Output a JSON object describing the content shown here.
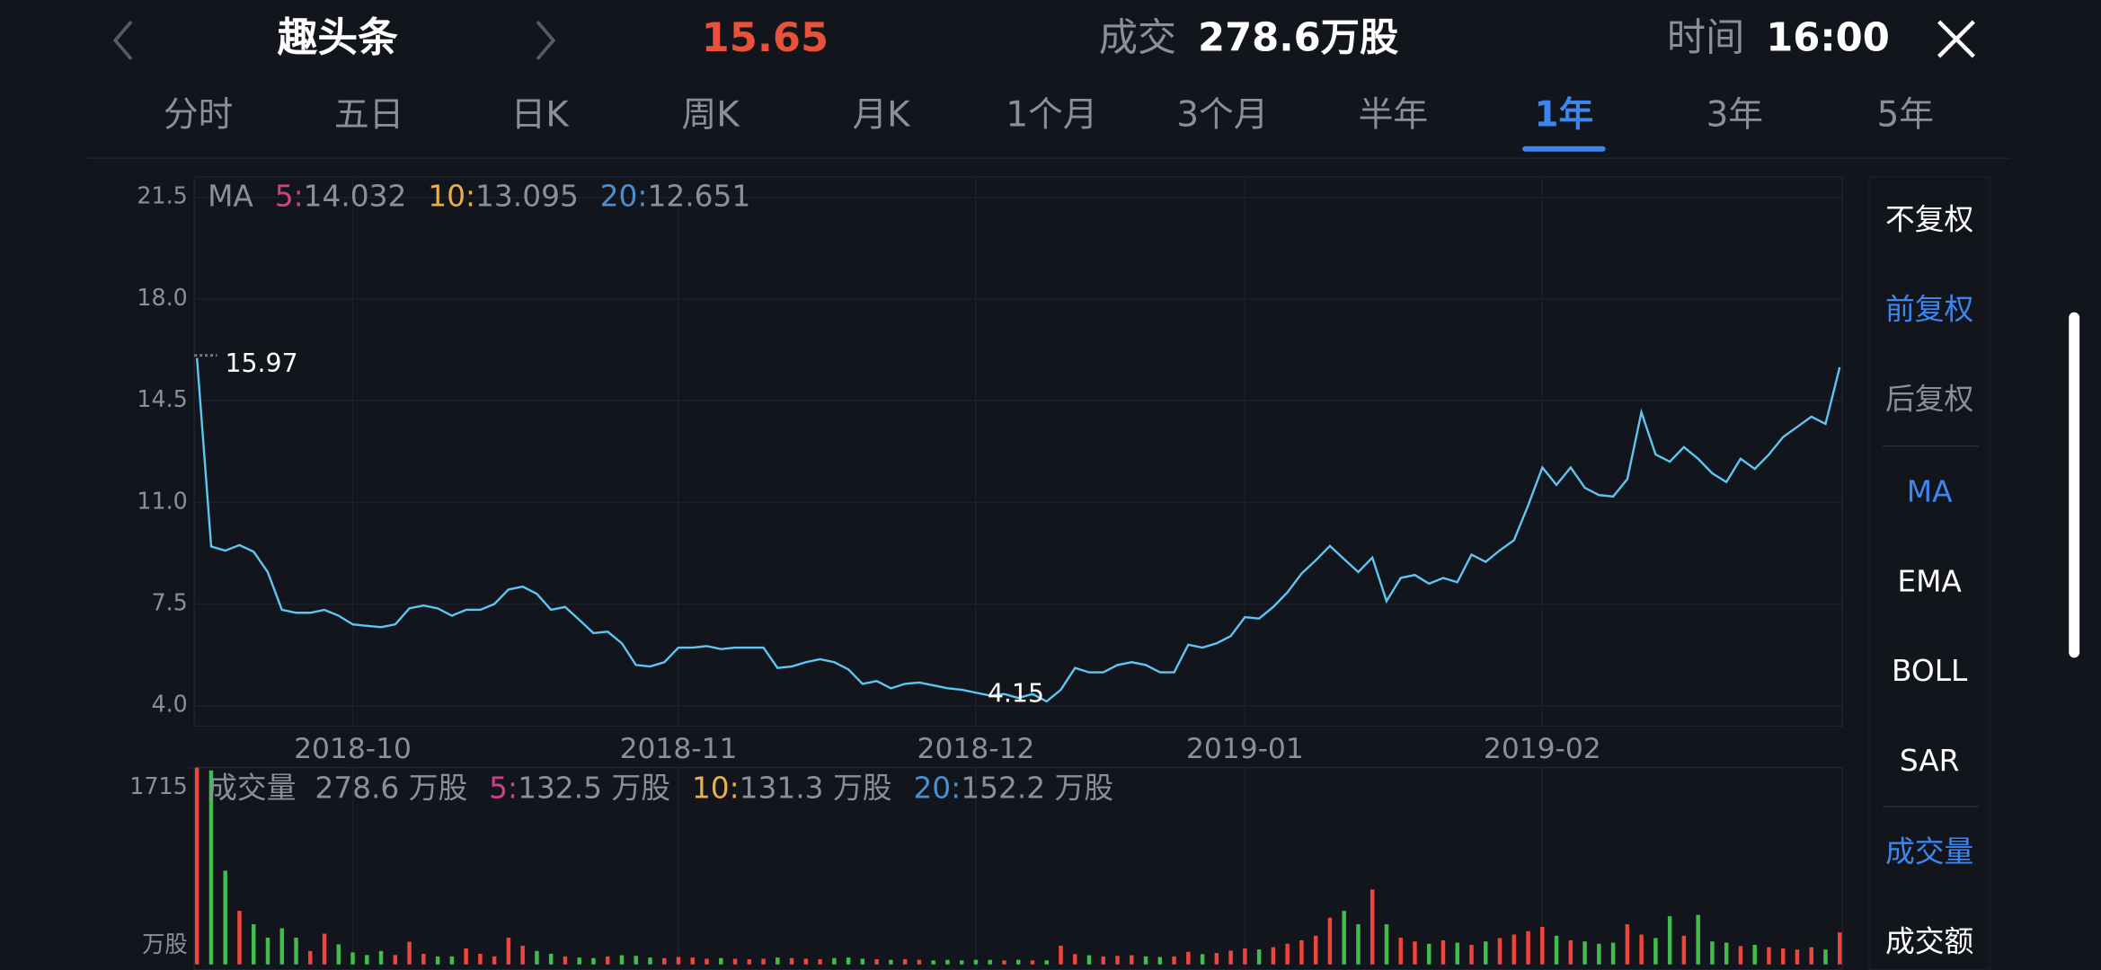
{
  "header": {
    "stock": "趣头条",
    "price": "15.65",
    "volume_label": "成交",
    "volume": "278.6万股",
    "time_label": "时间",
    "time": "16:00"
  },
  "tabs": {
    "items": [
      "分时",
      "五日",
      "日K",
      "周K",
      "月K",
      "1个月",
      "3个月",
      "半年",
      "1年",
      "3年",
      "5年"
    ],
    "active": 8
  },
  "side_menu": {
    "items": [
      {
        "text": "不复权",
        "color": "#ffffff"
      },
      {
        "text": "前复权",
        "color": "#3d86f0"
      },
      {
        "text": "后复权",
        "color": "#8a8f99"
      },
      {
        "text": "MA",
        "color": "#3d86f0"
      },
      {
        "text": "EMA",
        "color": "#ffffff"
      },
      {
        "text": "BOLL",
        "color": "#ffffff"
      },
      {
        "text": "SAR",
        "color": "#ffffff"
      },
      {
        "text": "成交量",
        "color": "#3d86f0"
      },
      {
        "text": "成交额",
        "color": "#ffffff"
      }
    ]
  },
  "chart_data": [
    {
      "type": "line",
      "legend": {
        "label": "MA",
        "items": [
          {
            "name": "5:",
            "value": 14.032,
            "color": "#d0408a"
          },
          {
            "name": "10:",
            "value": 13.095,
            "color": "#e8b04a"
          },
          {
            "name": "20:",
            "value": 12.651,
            "color": "#4a8fd0"
          }
        ]
      },
      "high_label": 15.97,
      "low_label": 4.15,
      "categories": [
        null,
        null,
        null,
        null,
        null,
        null,
        null,
        null,
        null,
        null,
        null,
        "2018-10",
        null,
        null,
        null,
        null,
        null,
        null,
        null,
        null,
        null,
        null,
        null,
        null,
        null,
        null,
        null,
        null,
        null,
        null,
        null,
        null,
        null,
        null,
        "2018-11",
        null,
        null,
        null,
        null,
        null,
        null,
        null,
        null,
        null,
        null,
        null,
        null,
        null,
        null,
        null,
        null,
        null,
        null,
        null,
        null,
        "2018-12",
        null,
        null,
        null,
        null,
        null,
        null,
        null,
        null,
        null,
        null,
        null,
        null,
        null,
        null,
        null,
        null,
        null,
        null,
        "2019-01",
        null,
        null,
        null,
        null,
        null,
        null,
        null,
        null,
        null,
        null,
        null,
        null,
        null,
        null,
        null,
        null,
        null,
        null,
        null,
        null,
        "2019-02",
        null,
        null,
        null,
        null,
        null,
        null,
        null,
        null,
        null,
        null,
        null,
        null,
        null,
        null,
        null,
        null,
        null,
        null,
        null,
        null,
        null
      ],
      "series": [
        {
          "color": "#5ec6f2",
          "values": [
            15.97,
            9.48,
            9.34,
            9.53,
            9.3,
            8.6,
            7.3,
            7.2,
            7.2,
            7.3,
            7.1,
            6.8,
            6.75,
            6.7,
            6.8,
            7.35,
            7.45,
            7.35,
            7.1,
            7.3,
            7.3,
            7.5,
            8.0,
            8.1,
            7.85,
            7.3,
            7.4,
            6.95,
            6.5,
            6.55,
            6.15,
            5.4,
            5.35,
            5.5,
            6.0,
            6.0,
            6.05,
            5.95,
            6.0,
            6.0,
            6.0,
            5.3,
            5.35,
            5.5,
            5.6,
            5.5,
            5.25,
            4.75,
            4.85,
            4.6,
            4.75,
            4.8,
            4.7,
            4.6,
            4.55,
            4.45,
            4.35,
            4.4,
            4.27,
            4.4,
            4.15,
            4.55,
            5.3,
            5.15,
            5.15,
            5.4,
            5.5,
            5.4,
            5.15,
            5.15,
            6.1,
            6.0,
            6.15,
            6.4,
            7.05,
            7.0,
            7.4,
            7.9,
            8.55,
            9.0,
            9.5,
            9.05,
            8.6,
            9.1,
            7.6,
            8.4,
            8.5,
            8.2,
            8.4,
            8.25,
            9.2,
            8.95,
            9.35,
            9.7,
            10.9,
            12.2,
            11.6,
            12.2,
            11.5,
            11.25,
            11.2,
            11.8,
            14.1,
            12.65,
            12.4,
            12.9,
            12.5,
            12.0,
            11.7,
            12.5,
            12.15,
            12.65,
            13.25,
            13.6,
            13.95,
            13.7,
            15.65
          ]
        }
      ],
      "ylim": [
        3.3,
        22.2
      ],
      "yticks": [
        {
          "value": 4,
          "label": "4.0"
        },
        7.5,
        {
          "value": 11,
          "label": "11.0"
        },
        14.5,
        {
          "value": 18,
          "label": "18.0"
        },
        21.5
      ],
      "grid": true
    },
    {
      "type": "bar",
      "legend": {
        "label": "成交量",
        "total": "278.6 万股",
        "items": [
          {
            "name": "5:",
            "value": "132.5 万股",
            "color": "#d0408a"
          },
          {
            "name": "10:",
            "value": "131.3 万股",
            "color": "#e8b04a"
          },
          {
            "name": "20:",
            "value": "152.2 万股",
            "color": "#4a8fd0"
          }
        ]
      },
      "unit": "万股",
      "up_color": "#f0453a",
      "down_color": "#3fbf4a",
      "values": [
        1715,
        1690,
        817,
        467,
        350,
        233,
        315,
        233,
        117,
        268,
        175,
        105,
        82,
        117,
        82,
        198,
        93,
        70,
        70,
        140,
        93,
        70,
        233,
        163,
        117,
        93,
        70,
        60,
        55,
        70,
        80,
        75,
        60,
        55,
        65,
        60,
        50,
        55,
        50,
        45,
        50,
        60,
        55,
        50,
        45,
        55,
        60,
        50,
        45,
        40,
        45,
        40,
        35,
        40,
        35,
        40,
        40,
        35,
        40,
        35,
        35,
        163,
        90,
        80,
        70,
        75,
        80,
        70,
        65,
        70,
        110,
        90,
        100,
        120,
        140,
        130,
        150,
        180,
        210,
        250,
        408,
        467,
        350,
        653,
        350,
        233,
        200,
        180,
        210,
        190,
        170,
        200,
        230,
        260,
        290,
        327,
        250,
        210,
        200,
        180,
        190,
        350,
        260,
        230,
        420,
        250,
        432,
        200,
        190,
        160,
        170,
        150,
        140,
        130,
        150,
        130,
        278.6
      ],
      "ylim": [
        0,
        1715
      ],
      "yticks": [
        1715
      ]
    }
  ]
}
